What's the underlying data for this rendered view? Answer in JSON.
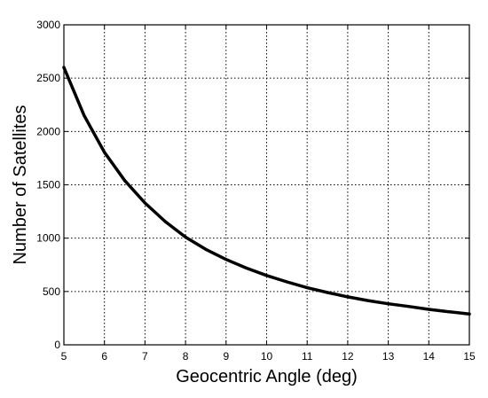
{
  "chart_data": {
    "type": "line",
    "title": "",
    "xlabel": "Geocentric Angle (deg)",
    "ylabel": "Number of Satellites",
    "xlim": [
      5,
      15
    ],
    "ylim": [
      0,
      3000
    ],
    "xticks": [
      5,
      6,
      7,
      8,
      9,
      10,
      11,
      12,
      13,
      14,
      15
    ],
    "yticks": [
      0,
      500,
      1000,
      1500,
      2000,
      2500,
      3000
    ],
    "xtick_labels": [
      "5",
      "6",
      "7",
      "8",
      "9",
      "10",
      "11",
      "12",
      "13",
      "14",
      "15"
    ],
    "ytick_labels": [
      "0",
      "500",
      "1000",
      "1500",
      "2000",
      "2500",
      "3000"
    ],
    "grid": true,
    "series": [
      {
        "color": "#000000",
        "x": [
          5,
          5.5,
          6,
          6.5,
          7,
          7.5,
          8,
          8.5,
          9,
          9.5,
          10,
          10.5,
          11,
          11.5,
          12,
          12.5,
          13,
          13.5,
          14,
          14.5,
          15
        ],
        "y": [
          2600,
          2150,
          1805,
          1540,
          1330,
          1155,
          1010,
          895,
          800,
          720,
          650,
          590,
          535,
          490,
          450,
          415,
          385,
          360,
          332,
          310,
          288
        ]
      }
    ]
  }
}
